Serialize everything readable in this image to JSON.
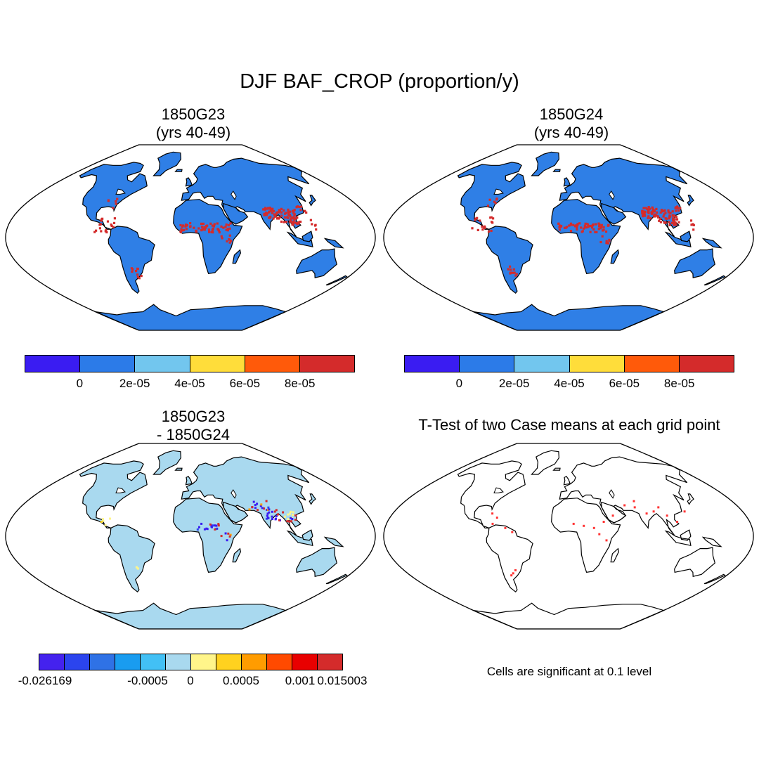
{
  "title": "DJF BAF_CROP (proportion/y)",
  "panels": [
    {
      "id": "p1",
      "title_line1": "1850G23",
      "title_line2": "(yrs 40-49)",
      "kind": "field"
    },
    {
      "id": "p2",
      "title_line1": "1850G24",
      "title_line2": "(yrs 40-49)",
      "kind": "field"
    },
    {
      "id": "p3",
      "title_line1": "1850G23",
      "title_line2": "- 1850G24",
      "kind": "diff"
    },
    {
      "id": "p4",
      "title_line1": "T-Test of two Case means at each grid point",
      "title_line2": "",
      "kind": "ttest"
    }
  ],
  "colorbar_top": {
    "colors": [
      "#3a1cf2",
      "#2c7be8",
      "#72c6ee",
      "#ffdd3a",
      "#ff5a0a",
      "#d42b2b"
    ],
    "labels": [
      "0",
      "2e-05",
      "4e-05",
      "6e-05",
      "8e-05"
    ]
  },
  "colorbar_diff": {
    "colors": [
      "#4422ee",
      "#2b44ee",
      "#2f72e6",
      "#199cf0",
      "#42c0f5",
      "#a9d9ef",
      "#fff58a",
      "#ffd21f",
      "#ff9c00",
      "#ff4a00",
      "#e80000",
      "#d42b2b"
    ],
    "labels": [
      "-0.026169",
      "-0.0005",
      "0",
      "0.0005",
      "0.001",
      "0.015003"
    ]
  },
  "significance_note": "Cells are significant at 0.1 level",
  "colors": {
    "land_field": "#2f7fe6",
    "land_diff": "#a9d9ef",
    "hot": "#d42b2b",
    "neg": "#3a1cf2",
    "sig": "#ff3333"
  }
}
